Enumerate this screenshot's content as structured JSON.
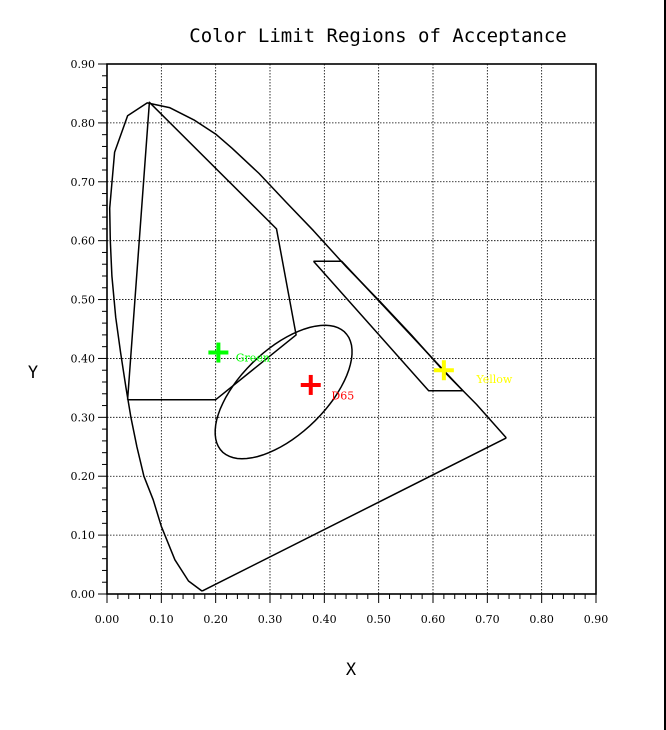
{
  "chart_data": {
    "type": "scatter",
    "title": "Color Limit Regions of Acceptance",
    "xlabel": "X",
    "ylabel": "Y",
    "xlim": [
      0,
      0.9
    ],
    "ylim": [
      0,
      0.9
    ],
    "grid": true,
    "x_ticks": [
      "0.00",
      "0.10",
      "0.20",
      "0.30",
      "0.40",
      "0.50",
      "0.60",
      "0.70",
      "0.80",
      "0.90"
    ],
    "y_ticks": [
      "0.00",
      "0.10",
      "0.20",
      "0.30",
      "0.40",
      "0.50",
      "0.60",
      "0.70",
      "0.80",
      "0.90"
    ],
    "spectral_locus": [
      [
        0.175,
        0.005
      ],
      [
        0.15,
        0.022
      ],
      [
        0.125,
        0.058
      ],
      [
        0.1,
        0.115
      ],
      [
        0.085,
        0.16
      ],
      [
        0.068,
        0.2
      ],
      [
        0.055,
        0.25
      ],
      [
        0.044,
        0.3
      ],
      [
        0.035,
        0.35
      ],
      [
        0.025,
        0.41
      ],
      [
        0.016,
        0.47
      ],
      [
        0.009,
        0.54
      ],
      [
        0.006,
        0.6
      ],
      [
        0.005,
        0.655
      ],
      [
        0.014,
        0.75
      ],
      [
        0.038,
        0.812
      ],
      [
        0.074,
        0.834
      ],
      [
        0.115,
        0.826
      ],
      [
        0.16,
        0.805
      ],
      [
        0.2,
        0.781
      ],
      [
        0.23,
        0.757
      ],
      [
        0.28,
        0.714
      ],
      [
        0.33,
        0.665
      ],
      [
        0.38,
        0.617
      ],
      [
        0.44,
        0.556
      ],
      [
        0.5,
        0.499
      ],
      [
        0.56,
        0.44
      ],
      [
        0.62,
        0.378
      ],
      [
        0.68,
        0.322
      ],
      [
        0.735,
        0.265
      ]
    ],
    "purple_line": [
      [
        0.735,
        0.265
      ],
      [
        0.175,
        0.005
      ]
    ],
    "regions": [
      {
        "name": "Green",
        "color": "#00ff00",
        "center": [
          0.205,
          0.41
        ],
        "label_offset": [
          0.032,
          -0.008
        ],
        "polygon": [
          [
            0.038,
            0.33
          ],
          [
            0.078,
            0.835
          ],
          [
            0.312,
            0.62
          ],
          [
            0.348,
            0.44
          ],
          [
            0.2,
            0.33
          ],
          [
            0.038,
            0.33
          ]
        ]
      },
      {
        "name": "D65",
        "color": "#ff0000",
        "center": [
          0.375,
          0.355
        ],
        "label_offset": [
          0.038,
          -0.018
        ],
        "ellipse": {
          "cx": 0.325,
          "cy": 0.343,
          "rx": 0.152,
          "ry": 0.075,
          "angle_deg": 40
        }
      },
      {
        "name": "Yellow",
        "color": "#ffff00",
        "center": [
          0.62,
          0.38
        ],
        "label_offset": [
          0.06,
          -0.015
        ],
        "polygon": [
          [
            0.38,
            0.565
          ],
          [
            0.432,
            0.565
          ],
          [
            0.655,
            0.345
          ],
          [
            0.592,
            0.345
          ],
          [
            0.38,
            0.565
          ]
        ]
      }
    ]
  }
}
